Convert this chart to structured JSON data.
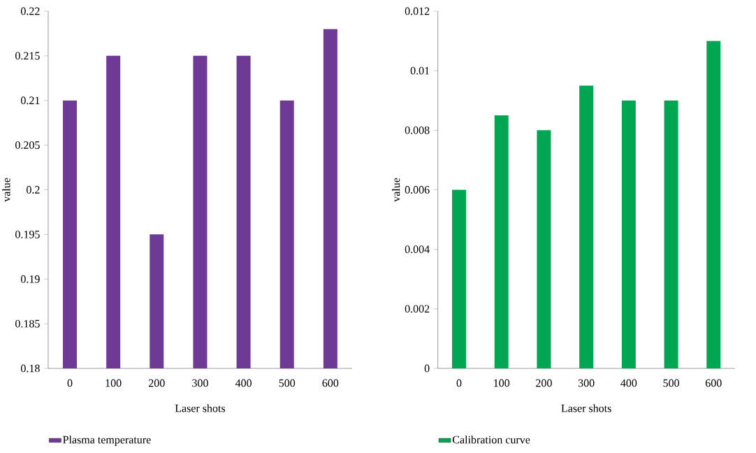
{
  "chart_data": [
    {
      "type": "bar",
      "categories": [
        "0",
        "100",
        "200",
        "300",
        "400",
        "500",
        "600"
      ],
      "xlabel": "Laser shots",
      "ylabel": "value",
      "ylim": [
        0.18,
        0.22
      ],
      "yticks": [
        0.18,
        0.185,
        0.19,
        0.195,
        0.2,
        0.205,
        0.21,
        0.215,
        0.22
      ],
      "legend": "bottom left",
      "series": [
        {
          "name": "Plasma temperature",
          "color": "#6f3996",
          "values": [
            0.21,
            0.215,
            0.195,
            0.215,
            0.215,
            0.21,
            0.218
          ]
        }
      ]
    },
    {
      "type": "bar",
      "categories": [
        "0",
        "100",
        "200",
        "300",
        "400",
        "500",
        "600"
      ],
      "xlabel": "Laser shots",
      "ylabel": "value",
      "ylim": [
        0,
        0.012
      ],
      "yticks": [
        0,
        0.002,
        0.004,
        0.006,
        0.008,
        0.01,
        0.012
      ],
      "legend": "bottom left",
      "series": [
        {
          "name": "Calibration curve",
          "color": "#00a651",
          "values": [
            0.006,
            0.0085,
            0.008,
            0.0095,
            0.009,
            0.009,
            0.011
          ]
        }
      ]
    }
  ]
}
